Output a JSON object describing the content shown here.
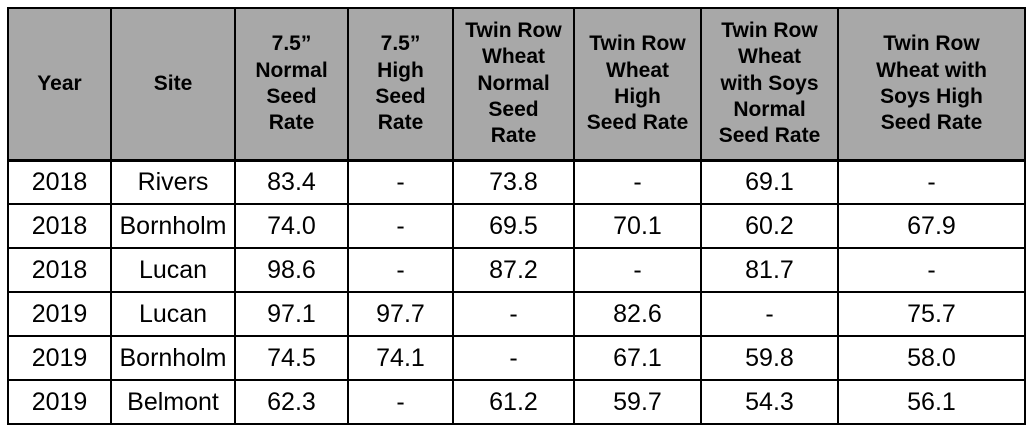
{
  "colors": {
    "header_bg": "#a8a8a8",
    "border": "#000000",
    "cell_text": "#000000",
    "page_bg": "#ffffff"
  },
  "table": {
    "columns": [
      {
        "label": "Year"
      },
      {
        "label": "Site"
      },
      {
        "label": "7.5”\nNormal\nSeed\nRate"
      },
      {
        "label": "7.5”\nHigh\nSeed\nRate"
      },
      {
        "label": "Twin Row\nWheat\nNormal\nSeed\nRate"
      },
      {
        "label": "Twin Row\nWheat\nHigh\nSeed Rate"
      },
      {
        "label": "Twin Row\nWheat\nwith Soys\nNormal\nSeed Rate"
      },
      {
        "label": "Twin Row\nWheat with\nSoys High\nSeed Rate"
      }
    ],
    "rows": [
      [
        "2018",
        "Rivers",
        "83.4",
        "-",
        "73.8",
        "-",
        "69.1",
        "-"
      ],
      [
        "2018",
        "Bornholm",
        "74.0",
        "-",
        "69.5",
        "70.1",
        "60.2",
        "67.9"
      ],
      [
        "2018",
        "Lucan",
        "98.6",
        "-",
        "87.2",
        "-",
        "81.7",
        "-"
      ],
      [
        "2019",
        "Lucan",
        "97.1",
        "97.7",
        "-",
        "82.6",
        "-",
        "75.7"
      ],
      [
        "2019",
        "Bornholm",
        "74.5",
        "74.1",
        "-",
        "67.1",
        "59.8",
        "58.0"
      ],
      [
        "2019",
        "Belmont",
        "62.3",
        "-",
        "61.2",
        "59.7",
        "54.3",
        "56.1"
      ]
    ]
  },
  "chart_data": {
    "type": "table",
    "title": "",
    "categories": [
      "Year",
      "Site",
      "7.5” Normal Seed Rate",
      "7.5” High Seed Rate",
      "Twin Row Wheat Normal Seed Rate",
      "Twin Row Wheat High Seed Rate",
      "Twin Row Wheat with Soys Normal Seed Rate",
      "Twin Row Wheat with Soys High Seed Rate"
    ],
    "values": [
      [
        "2018",
        "Rivers",
        "83.4",
        "-",
        "73.8",
        "-",
        "69.1",
        "-"
      ],
      [
        "2018",
        "Bornholm",
        "74.0",
        "-",
        "69.5",
        "70.1",
        "60.2",
        "67.9"
      ],
      [
        "2018",
        "Lucan",
        "98.6",
        "-",
        "87.2",
        "-",
        "81.7",
        "-"
      ],
      [
        "2019",
        "Lucan",
        "97.1",
        "97.7",
        "-",
        "82.6",
        "-",
        "75.7"
      ],
      [
        "2019",
        "Bornholm",
        "74.5",
        "74.1",
        "-",
        "67.1",
        "59.8",
        "58.0"
      ],
      [
        "2019",
        "Belmont",
        "62.3",
        "-",
        "61.2",
        "59.7",
        "54.3",
        "56.1"
      ]
    ]
  }
}
